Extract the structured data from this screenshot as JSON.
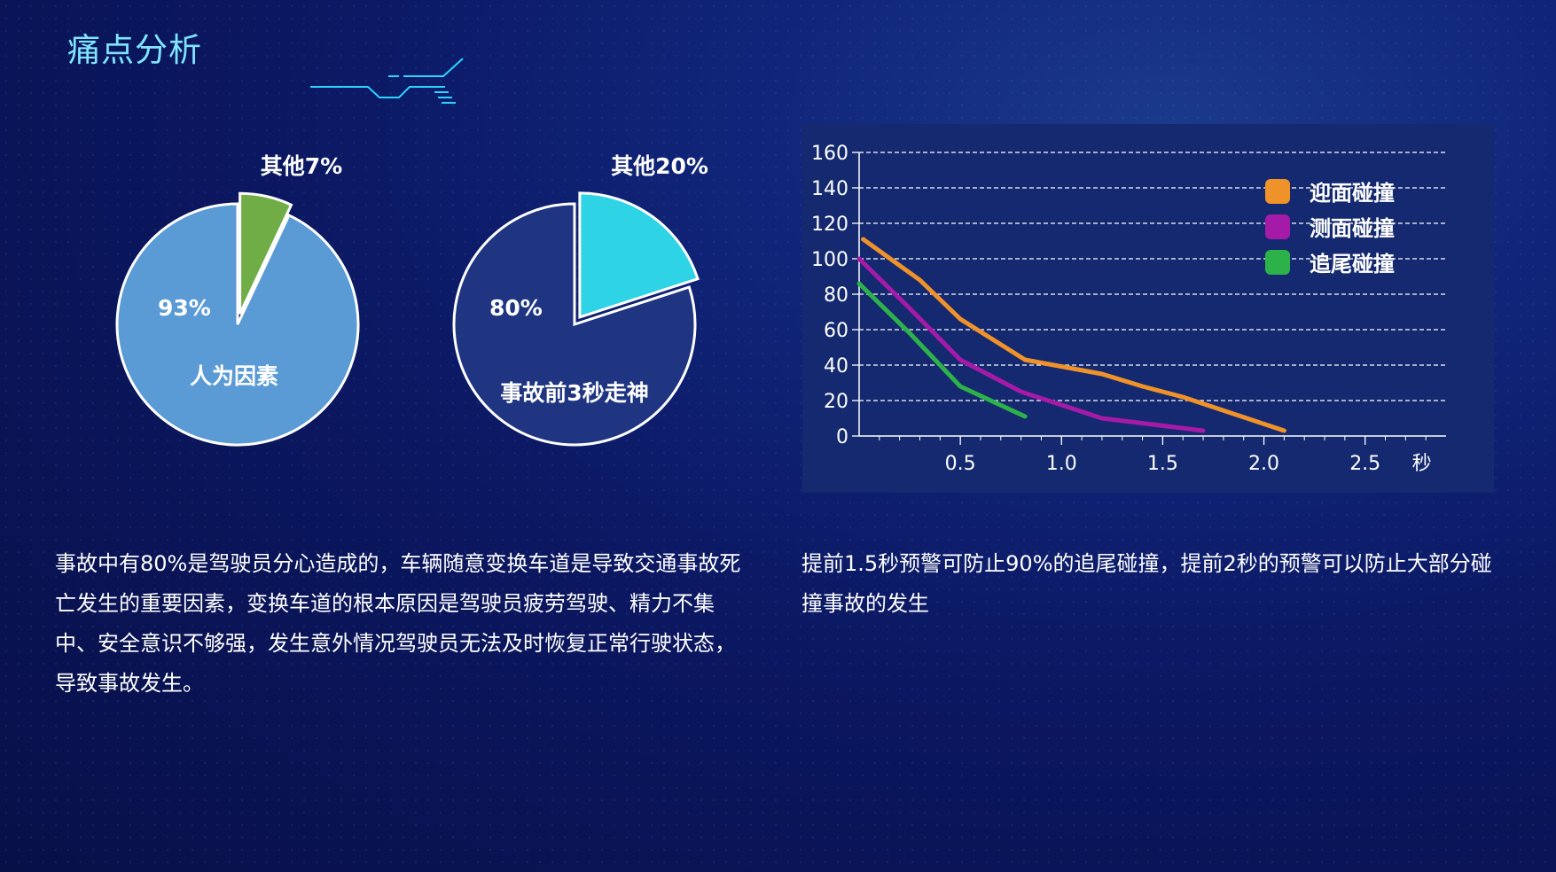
{
  "page": {
    "title": "痛点分析"
  },
  "pies": [
    {
      "type": "pie",
      "slices": [
        {
          "label": "人为因素",
          "value": 93,
          "value_label": "93%",
          "color": "#5b9bd5"
        },
        {
          "label": "其他",
          "value": 7,
          "value_label": "其他7%",
          "color": "#70ad47"
        }
      ]
    },
    {
      "type": "pie",
      "slices": [
        {
          "label": "事故前3秒走神",
          "value": 80,
          "value_label": "80%",
          "color": "#1f3581"
        },
        {
          "label": "其他",
          "value": 20,
          "value_label": "其他20%",
          "color": "#2fd3e6"
        }
      ]
    }
  ],
  "chart_data": {
    "type": "line",
    "xlim": [
      0,
      2.9
    ],
    "ylim": [
      0,
      160
    ],
    "xticks": [
      0.5,
      1.0,
      1.5,
      2.0,
      2.5
    ],
    "xtick_labels": [
      "0.5",
      "1.0",
      "1.5",
      "2.0",
      "2.5"
    ],
    "yticks": [
      0,
      20,
      40,
      60,
      80,
      100,
      120,
      140,
      160
    ],
    "ytick_labels": [
      "0",
      "20",
      "40",
      "60",
      "80",
      "100",
      "120",
      "140",
      "160"
    ],
    "x_unit_label": "秒",
    "grid": "horizontal-dashed",
    "legend_position": "top-right",
    "series": [
      {
        "name": "迎面碰撞",
        "color": "#f0922a",
        "points": [
          [
            0.02,
            111
          ],
          [
            0.3,
            88
          ],
          [
            0.5,
            66
          ],
          [
            0.82,
            43
          ],
          [
            1.2,
            35
          ],
          [
            1.4,
            28
          ],
          [
            1.6,
            22
          ],
          [
            2.1,
            3
          ]
        ]
      },
      {
        "name": "测面碰撞",
        "color": "#a61aa8",
        "points": [
          [
            0.0,
            100
          ],
          [
            0.25,
            72
          ],
          [
            0.5,
            43
          ],
          [
            0.8,
            25
          ],
          [
            1.2,
            10
          ],
          [
            1.7,
            3
          ]
        ]
      },
      {
        "name": "追尾碰撞",
        "color": "#2db24a",
        "points": [
          [
            0.0,
            86
          ],
          [
            0.25,
            58
          ],
          [
            0.5,
            28
          ],
          [
            0.82,
            11
          ]
        ]
      }
    ]
  },
  "text": {
    "paragraph_left": "事故中有80%是驾驶员分心造成的，车辆随意变换车道是导致交通事故死亡发生的重要因素，变换车道的根本原因是驾驶员疲劳驾驶、精力不集中、安全意识不够强，发生意外情况驾驶员无法及时恢复正常行驶状态，导致事故发生。",
    "paragraph_right": "提前1.5秒预警可防止90%的追尾碰撞，提前2秒的预警可以防止大部分碰撞事故的发生"
  }
}
